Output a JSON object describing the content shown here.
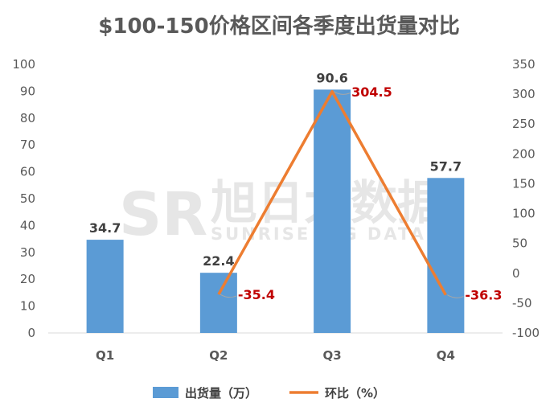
{
  "chart_data": {
    "type": "bar",
    "title": "$100-150价格区间各季度出货量对比",
    "categories": [
      "Q1",
      "Q2",
      "Q3",
      "Q4"
    ],
    "series": [
      {
        "name": "出货量（万）",
        "type": "bar",
        "axis": "left",
        "values": [
          34.7,
          22.4,
          90.6,
          57.7
        ],
        "labels": [
          "34.7",
          "22.4",
          "90.6",
          "57.7"
        ],
        "color": "#5b9bd5"
      },
      {
        "name": "环比（%）",
        "type": "line",
        "axis": "right",
        "values": [
          null,
          -35.4,
          304.5,
          -36.3
        ],
        "labels": [
          "",
          "-35.4",
          "304.5",
          "-36.3"
        ],
        "color": "#ed7d31"
      }
    ],
    "y_left": {
      "min": 0,
      "max": 100,
      "step": 10,
      "ticks": [
        "0",
        "10",
        "20",
        "30",
        "40",
        "50",
        "60",
        "70",
        "80",
        "90",
        "100"
      ]
    },
    "y_right": {
      "min": -100,
      "max": 350,
      "step": 50,
      "ticks": [
        "-100",
        "-50",
        "0",
        "50",
        "100",
        "150",
        "200",
        "250",
        "300",
        "350"
      ]
    },
    "grid": false,
    "legend_position": "bottom",
    "label_colors": {
      "bar": "#404040",
      "line": "#c00000"
    }
  },
  "watermark": {
    "logo_text": "SR",
    "cn_text": "旭日大数据",
    "en_text": "SUNRISE BIG DATA"
  }
}
